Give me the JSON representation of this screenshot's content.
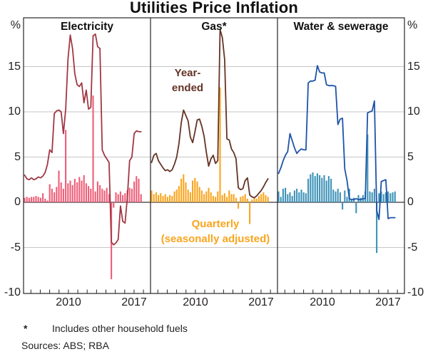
{
  "title": "Utilities Price Inflation",
  "axis": {
    "unit_left": "%",
    "unit_right": "%",
    "y_ticks": [
      15,
      10,
      5,
      0,
      -5,
      -10
    ],
    "ymin": -10,
    "ymax": 20.4,
    "grid": true,
    "x_labeled_years": [
      2010,
      2017
    ],
    "x_tick_years": [
      2006,
      2007,
      2008,
      2009,
      2010,
      2011,
      2012,
      2013,
      2014,
      2015,
      2016,
      2017,
      2018
    ]
  },
  "annotations": {
    "year_ended_1": "Year-",
    "year_ended_2": "ended",
    "quarterly_1": "Quarterly",
    "quarterly_2": "(seasonally adjusted)"
  },
  "footnote": {
    "marker": "*",
    "text": "Includes other household fuels"
  },
  "sources": "Sources: ABS; RBA",
  "colors": {
    "grid": "#c6c6c6",
    "zero_line": "#57575b",
    "frame": "#29252a",
    "electricity_line": "#a23744",
    "electricity_bar": "#ee5e78",
    "gas_line": "#643325",
    "gas_bar": "#f9a51f",
    "water_line": "#1f53a8",
    "water_bar": "#3e93b8"
  },
  "categories": [
    "2005Q1",
    "2005Q2",
    "2005Q3",
    "2005Q4",
    "2006Q1",
    "2006Q2",
    "2006Q3",
    "2006Q4",
    "2007Q1",
    "2007Q2",
    "2007Q3",
    "2007Q4",
    "2008Q1",
    "2008Q2",
    "2008Q3",
    "2008Q4",
    "2009Q1",
    "2009Q2",
    "2009Q3",
    "2009Q4",
    "2010Q1",
    "2010Q2",
    "2010Q3",
    "2010Q4",
    "2011Q1",
    "2011Q2",
    "2011Q3",
    "2011Q4",
    "2012Q1",
    "2012Q2",
    "2012Q3",
    "2012Q4",
    "2013Q1",
    "2013Q2",
    "2013Q3",
    "2013Q4",
    "2014Q1",
    "2014Q2",
    "2014Q3",
    "2014Q4",
    "2015Q1",
    "2015Q2",
    "2015Q3",
    "2015Q4",
    "2016Q1",
    "2016Q2",
    "2016Q3",
    "2016Q4",
    "2017Q1",
    "2017Q2",
    "2017Q3",
    "2017Q4"
  ],
  "chart_data": [
    {
      "panel": "Electricity",
      "type": "bar",
      "frequency": "quarterly",
      "x_start": "2005Q1",
      "x_end": "2017Q4",
      "ylim": [
        -10,
        20.4
      ],
      "series": [
        {
          "name": "Year-ended",
          "type": "line",
          "color": "#a23744",
          "values": [
            3.0,
            2.6,
            2.5,
            2.7,
            2.5,
            2.6,
            2.8,
            2.7,
            2.9,
            3.3,
            4.2,
            5.8,
            5.5,
            9.8,
            10.1,
            10.2,
            10.0,
            7.6,
            10.3,
            15.8,
            18.5,
            17.0,
            14.2,
            13.0,
            12.8,
            13.2,
            11.0,
            12.4,
            10.3,
            10.5,
            18.4,
            18.6,
            17.2,
            17.0,
            5.8,
            5.2,
            4.8,
            4.4,
            -4.4,
            -4.7,
            -4.5,
            -4.1,
            -0.4,
            -2.1,
            -2.3,
            0.5,
            4.6,
            5.0,
            7.6,
            7.9,
            7.8,
            7.8
          ]
        },
        {
          "name": "Quarterly (seasonally adjusted)",
          "type": "bar",
          "color": "#ee5e78",
          "values": [
            0.5,
            0.6,
            0.5,
            0.6,
            0.6,
            0.7,
            0.6,
            0.5,
            1.0,
            0.4,
            0.2,
            2.0,
            1.5,
            1.1,
            1.7,
            3.5,
            2.2,
            1.5,
            8.0,
            2.1,
            2.4,
            1.9,
            2.6,
            2.2,
            2.8,
            2.4,
            3.0,
            2.1,
            1.8,
            1.5,
            11.8,
            1.2,
            2.3,
            1.9,
            1.5,
            1.3,
            1.6,
            0.9,
            -8.5,
            -0.6,
            1.1,
            0.9,
            1.2,
            0.8,
            1.0,
            1.3,
            1.6,
            1.5,
            2.3,
            2.9,
            2.6,
            0.9
          ]
        }
      ]
    },
    {
      "panel": "Gas*",
      "type": "bar",
      "frequency": "quarterly",
      "x_start": "2005Q1",
      "x_end": "2017Q4",
      "ylim": [
        -10,
        20.4
      ],
      "series": [
        {
          "name": "Year-ended",
          "type": "line",
          "color": "#643325",
          "values": [
            4.4,
            5.2,
            5.4,
            4.6,
            4.2,
            3.8,
            3.5,
            3.6,
            3.4,
            3.6,
            4.2,
            5.0,
            6.5,
            8.8,
            10.2,
            9.6,
            9.0,
            7.2,
            6.6,
            7.8,
            9.1,
            9.2,
            8.4,
            7.3,
            5.5,
            4.0,
            4.8,
            5.2,
            4.3,
            4.6,
            19.1,
            18.2,
            15.8,
            7.0,
            6.9,
            5.9,
            5.5,
            4.8,
            1.6,
            1.4,
            1.5,
            2.4,
            2.7,
            0.8,
            0.6,
            0.5,
            0.7,
            1.0,
            1.3,
            1.7,
            2.2,
            2.6
          ]
        },
        {
          "name": "Quarterly (seasonally adjusted)",
          "type": "bar",
          "color": "#f9a51f",
          "values": [
            1.3,
            0.9,
            1.1,
            0.8,
            1.0,
            0.7,
            0.9,
            0.6,
            0.8,
            0.7,
            1.2,
            1.4,
            1.8,
            2.6,
            3.1,
            2.2,
            1.4,
            1.1,
            2.4,
            2.7,
            2.3,
            1.7,
            1.3,
            0.9,
            1.2,
            1.6,
            1.1,
            0.7,
            0.6,
            1.2,
            12.7,
            0.8,
            1.0,
            0.6,
            1.3,
            0.9,
            0.9,
            0.5,
            -0.7,
            0.6,
            0.7,
            0.9,
            0.4,
            -2.4,
            0.3,
            0.6,
            0.4,
            0.7,
            0.9,
            1.1,
            0.8,
            0.6
          ]
        }
      ]
    },
    {
      "panel": "Water & sewerage",
      "type": "bar",
      "frequency": "quarterly",
      "x_start": "2005Q1",
      "x_end": "2017Q4",
      "ylim": [
        -10,
        20.4
      ],
      "series": [
        {
          "name": "Year-ended",
          "type": "line",
          "color": "#1f53a8",
          "values": [
            3.2,
            3.8,
            4.6,
            5.2,
            5.6,
            7.6,
            6.8,
            6.0,
            5.4,
            5.7,
            5.9,
            5.8,
            5.8,
            13.2,
            13.4,
            13.4,
            13.5,
            15.1,
            14.4,
            14.3,
            14.3,
            13.0,
            12.9,
            12.9,
            12.9,
            12.8,
            8.6,
            9.2,
            9.3,
            3.7,
            2.4,
            0.4,
            0.3,
            0.3,
            0.4,
            0.3,
            0.3,
            0.4,
            0.4,
            9.9,
            10.0,
            10.1,
            11.2,
            -0.9,
            -1.9,
            2.3,
            2.4,
            2.5,
            -1.8,
            -1.7,
            -1.7,
            -1.7
          ]
        },
        {
          "name": "Quarterly (seasonally adjusted)",
          "type": "bar",
          "color": "#3e93b8",
          "values": [
            1.2,
            0.6,
            1.5,
            1.6,
            0.9,
            1.1,
            0.7,
            1.3,
            1.5,
            1.1,
            1.4,
            1.1,
            1.0,
            2.6,
            3.1,
            3.3,
            2.9,
            3.2,
            3.0,
            2.7,
            3.0,
            2.4,
            2.9,
            2.6,
            1.4,
            1.2,
            1.5,
            1.1,
            -0.8,
            1.3,
            0.6,
            1.5,
            0.3,
            0.5,
            -1.2,
            0.8,
            0.5,
            0.8,
            1.2,
            7.5,
            1.2,
            1.1,
            1.5,
            -5.6,
            1.0,
            1.2,
            0.9,
            1.1,
            1.2,
            1.0,
            1.1,
            1.2
          ]
        }
      ]
    }
  ]
}
